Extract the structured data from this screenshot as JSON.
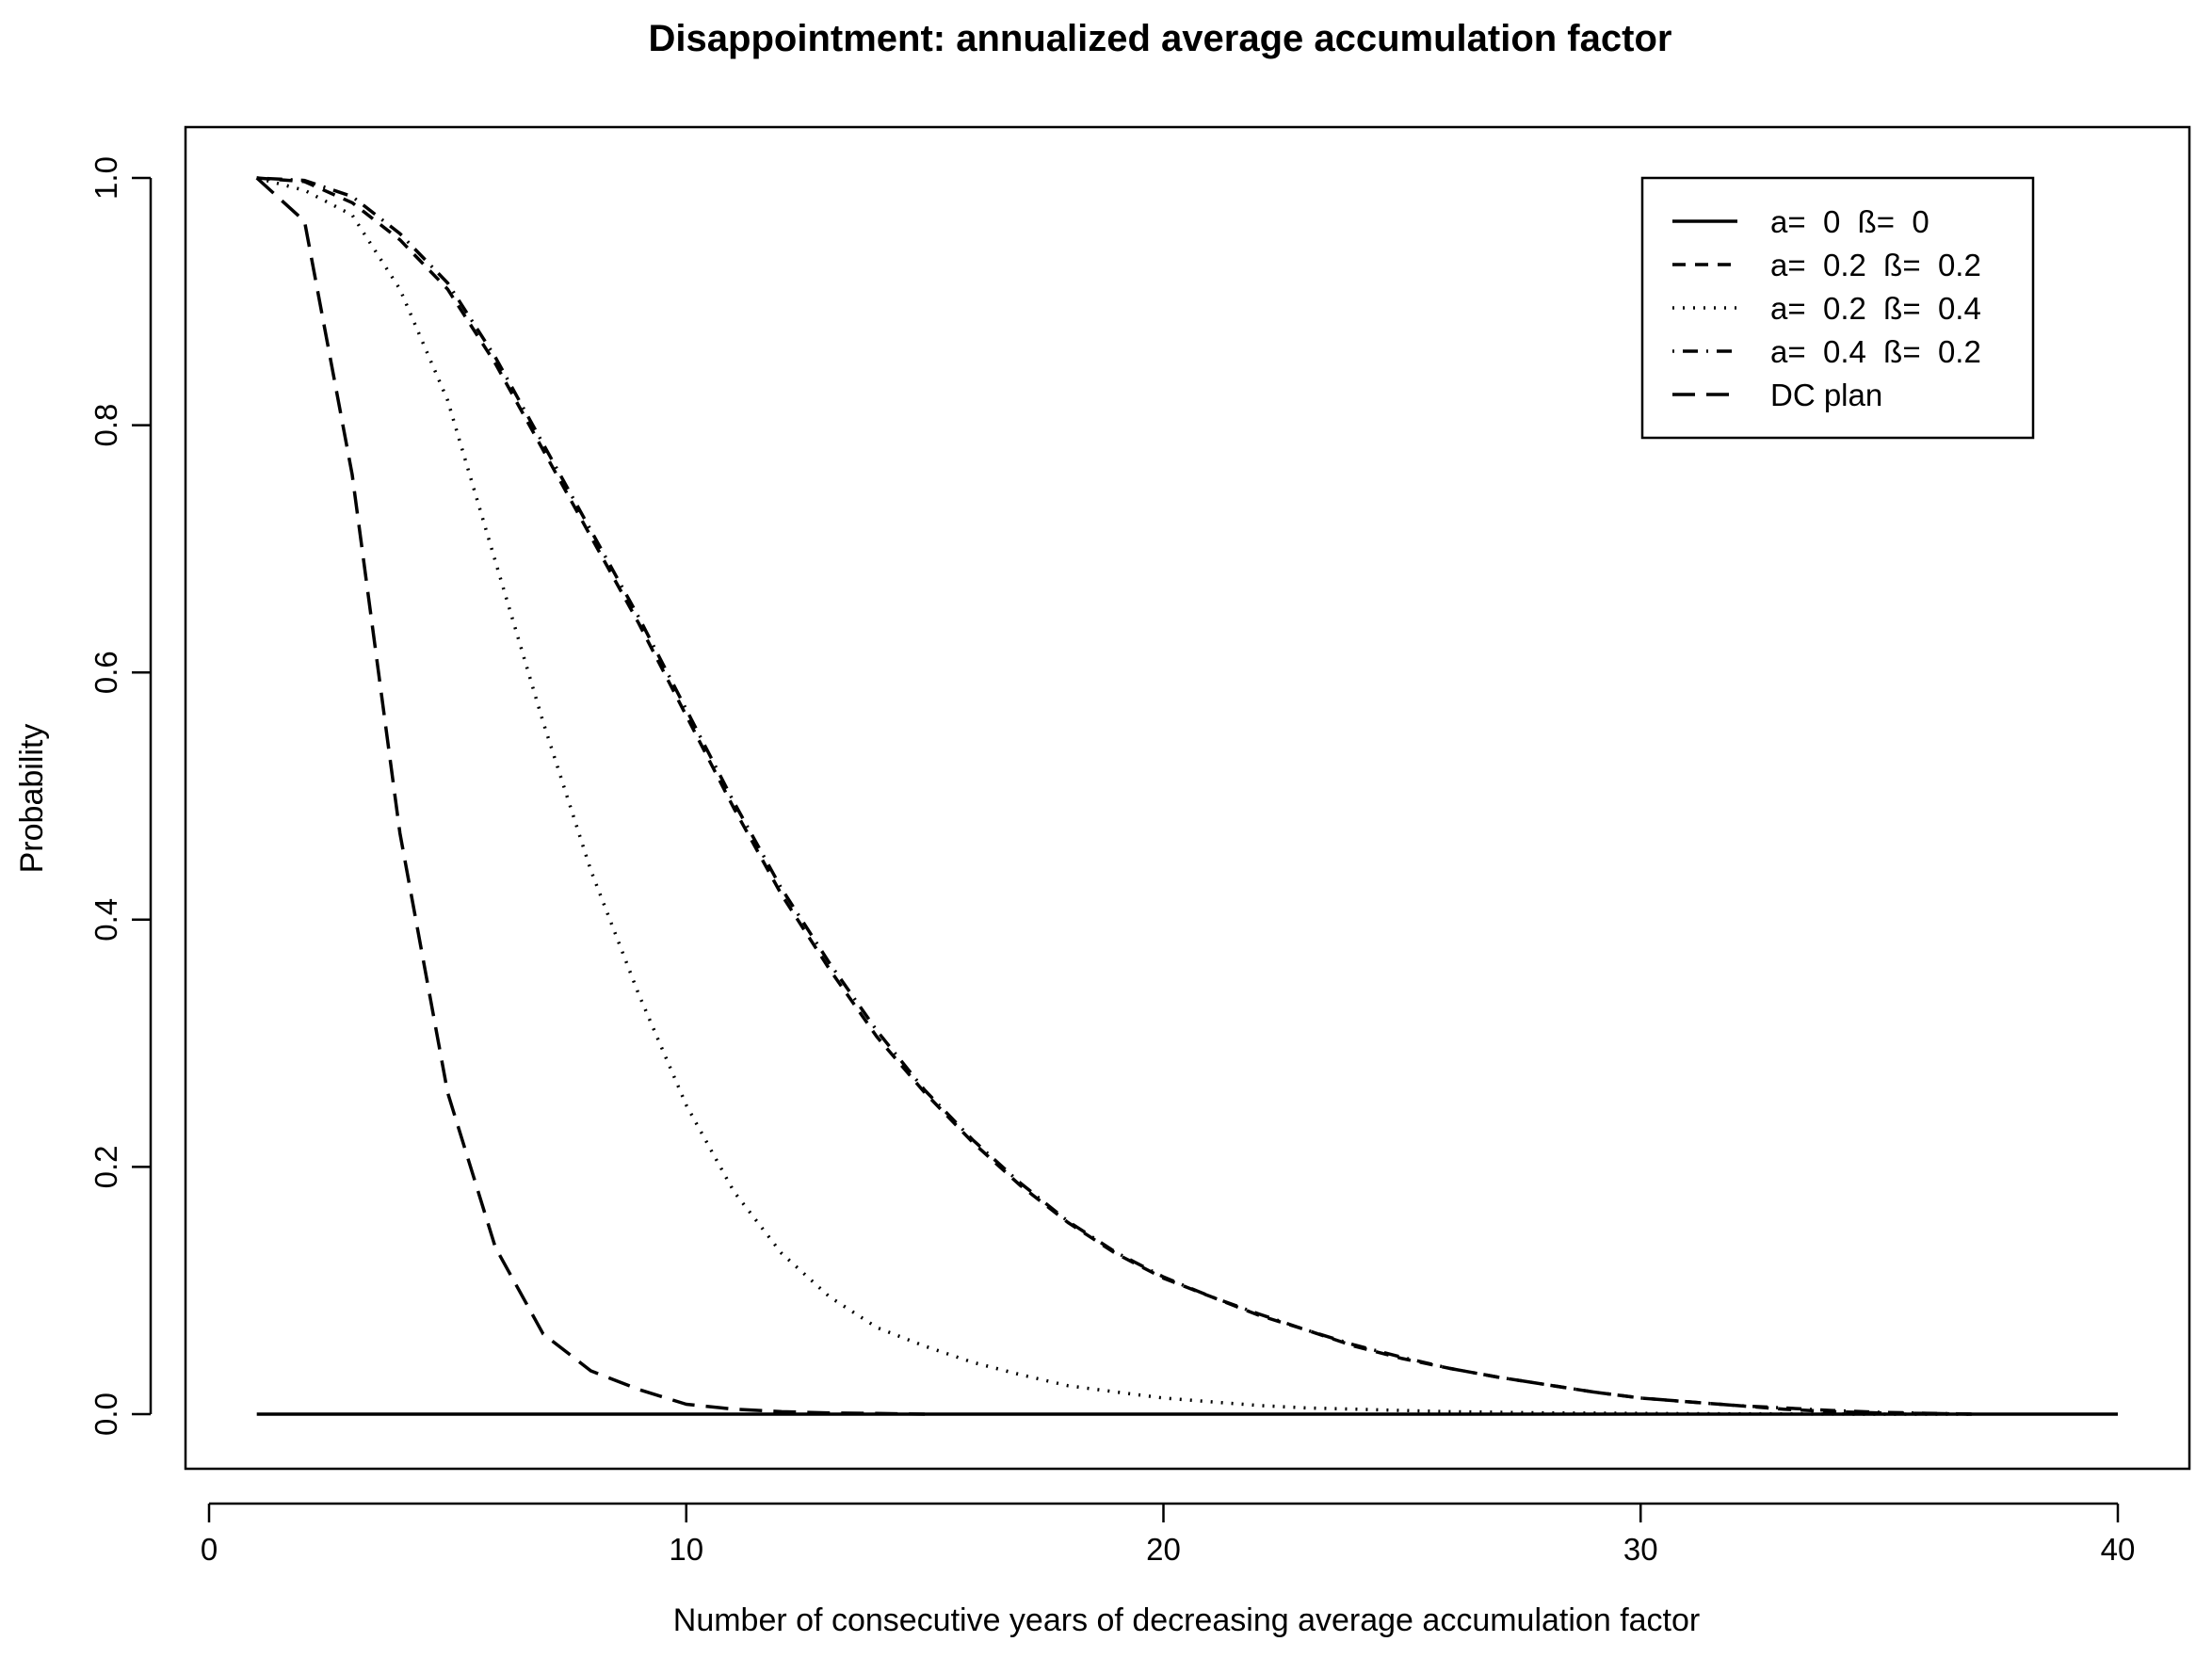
{
  "chart_data": {
    "type": "line",
    "title": "Disappointment: annualized average accumulation factor",
    "xlabel": "Number of consecutive years of decreasing average accumulation factor",
    "ylabel": "Probability",
    "xlim": [
      0,
      40
    ],
    "ylim": [
      0,
      1
    ],
    "xticks": [
      "0",
      "10",
      "20",
      "30",
      "40"
    ],
    "yticks": [
      "0.0",
      "0.2",
      "0.4",
      "0.6",
      "0.8",
      "1.0"
    ],
    "legend_position": "top-right",
    "series": [
      {
        "name": "a=  0  ß=  0",
        "style": "solid",
        "x": [
          1,
          40
        ],
        "y": [
          0.0,
          0.0
        ]
      },
      {
        "name": "a=  0.2  ß=  0.2",
        "style": "dashed",
        "x": [
          1,
          2,
          3,
          4,
          5,
          6,
          7,
          8,
          9,
          10,
          11,
          12,
          13,
          14,
          15,
          16,
          17,
          18,
          19,
          20,
          21,
          22,
          23,
          24,
          25,
          26,
          27,
          28,
          29,
          30,
          31,
          32,
          33,
          34,
          35,
          36,
          37
        ],
        "y": [
          1.0,
          0.997,
          0.98,
          0.95,
          0.91,
          0.85,
          0.78,
          0.71,
          0.64,
          0.565,
          0.49,
          0.42,
          0.36,
          0.305,
          0.26,
          0.22,
          0.185,
          0.155,
          0.13,
          0.11,
          0.095,
          0.08,
          0.068,
          0.055,
          0.045,
          0.037,
          0.03,
          0.024,
          0.018,
          0.013,
          0.01,
          0.007,
          0.004,
          0.002,
          0.001,
          0.0005,
          0.0
        ]
      },
      {
        "name": "a=  0.2  ß=  0.4",
        "style": "dotted",
        "x": [
          1,
          2,
          3,
          4,
          5,
          6,
          7,
          8,
          9,
          10,
          11,
          12,
          13,
          14,
          15,
          16,
          17,
          18,
          19,
          20,
          21,
          22,
          23,
          24,
          25,
          26,
          27,
          28,
          29,
          30,
          31,
          32,
          33,
          34,
          35,
          36,
          37
        ],
        "y": [
          1.0,
          0.99,
          0.97,
          0.91,
          0.82,
          0.69,
          0.56,
          0.44,
          0.34,
          0.25,
          0.18,
          0.13,
          0.095,
          0.07,
          0.055,
          0.042,
          0.032,
          0.023,
          0.018,
          0.013,
          0.01,
          0.007,
          0.005,
          0.004,
          0.003,
          0.002,
          0.0015,
          0.001,
          0.0008,
          0.0006,
          0.0004,
          0.0003,
          0.0002,
          0.0001,
          0.0,
          0.0,
          0.0
        ]
      },
      {
        "name": "a=  0.4  ß=  0.2",
        "style": "dotdash",
        "x": [
          1,
          2,
          3,
          4,
          5,
          6,
          7,
          8,
          9,
          10,
          11,
          12,
          13,
          14,
          15,
          16,
          17,
          18,
          19,
          20,
          21,
          22,
          23,
          24,
          25,
          26,
          27,
          28,
          29,
          30,
          31,
          32,
          33,
          34,
          35,
          36,
          37
        ],
        "y": [
          1.0,
          0.998,
          0.985,
          0.955,
          0.915,
          0.855,
          0.785,
          0.715,
          0.645,
          0.57,
          0.495,
          0.425,
          0.365,
          0.31,
          0.262,
          0.222,
          0.187,
          0.156,
          0.131,
          0.111,
          0.095,
          0.081,
          0.068,
          0.056,
          0.046,
          0.037,
          0.03,
          0.024,
          0.018,
          0.013,
          0.01,
          0.007,
          0.005,
          0.003,
          0.0015,
          0.0007,
          0.0
        ]
      },
      {
        "name": "DC plan",
        "style": "longdash",
        "x": [
          1,
          2,
          3,
          4,
          5,
          6,
          7,
          8,
          9,
          10,
          11,
          12,
          13,
          14,
          15
        ],
        "y": [
          1.0,
          0.965,
          0.76,
          0.47,
          0.26,
          0.135,
          0.065,
          0.035,
          0.02,
          0.008,
          0.004,
          0.002,
          0.001,
          0.0005,
          0.0
        ]
      }
    ]
  }
}
